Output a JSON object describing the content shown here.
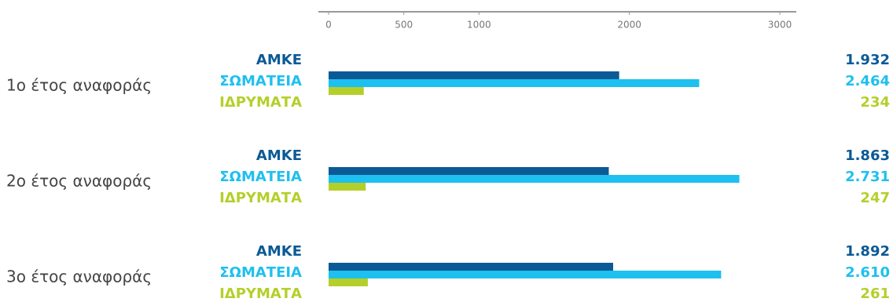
{
  "chart_data": {
    "type": "bar",
    "orientation": "horizontal",
    "categories": [
      "1ο έτος αναφοράς",
      "2ο έτος αναφοράς",
      "3ο έτος αναφοράς"
    ],
    "series": [
      {
        "name": "ΑΜΚΕ",
        "color": "#0b5a96",
        "values": [
          1932,
          1863,
          1892
        ],
        "value_labels": [
          "1.932",
          "1.863",
          "1.892"
        ]
      },
      {
        "name": "ΣΩΜΑΤΕΙΑ",
        "color": "#1ec0ef",
        "values": [
          2464,
          2731,
          2610
        ],
        "value_labels": [
          "2.464",
          "2.731",
          "2.610"
        ]
      },
      {
        "name": "ΙΔΡΥΜΑΤΑ",
        "color": "#b5cf2a",
        "values": [
          234,
          247,
          261
        ],
        "value_labels": [
          "234",
          "247",
          "261"
        ]
      }
    ],
    "xlim": [
      0,
      3000
    ],
    "xticks": [
      0,
      500,
      1000,
      2000,
      3000
    ]
  }
}
